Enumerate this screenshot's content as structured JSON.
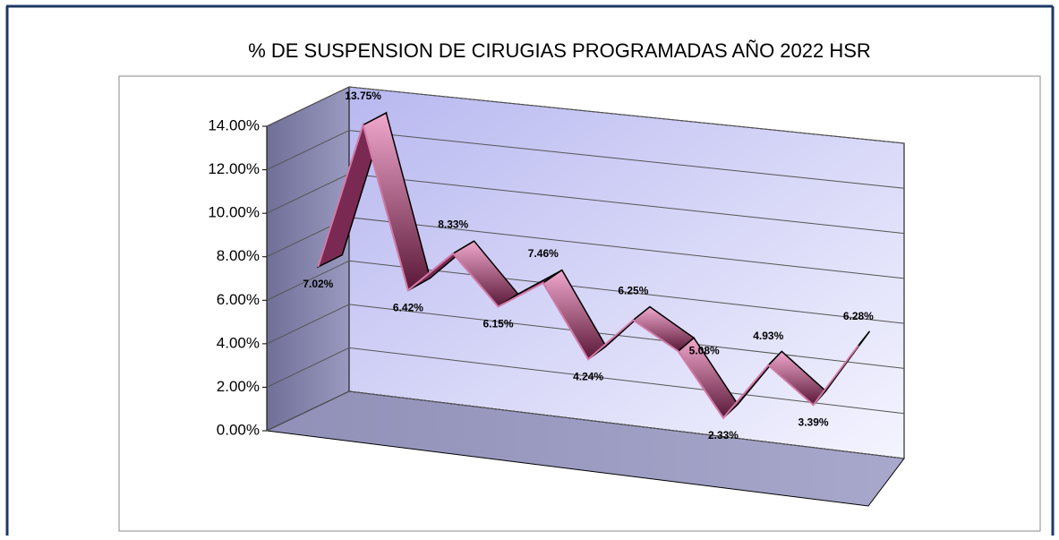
{
  "chart_data": {
    "type": "line3d",
    "title": "% DE SUSPENSION DE CIRUGIAS PROGRAMADAS AÑO 2022 HSR",
    "categories": [
      null,
      null,
      null,
      null,
      null,
      null,
      null,
      null,
      null,
      null,
      null,
      null,
      null
    ],
    "values": [
      7.02,
      13.75,
      6.42,
      8.33,
      6.15,
      7.46,
      4.24,
      6.25,
      5.08,
      2.33,
      4.93,
      3.39,
      6.28
    ],
    "value_labels": [
      "7.02%",
      "13.75%",
      "6.42%",
      "8.33%",
      "6.15%",
      "7.46%",
      "4.24%",
      "6.25%",
      "5.08%",
      "2.33%",
      "4.93%",
      "3.39%",
      "6.28%"
    ],
    "color": "#d27aa8",
    "ylim": [
      0,
      14
    ],
    "yticks": [
      {
        "value": 0,
        "label": "0.00%"
      },
      {
        "value": 2,
        "label": "2.00%"
      },
      {
        "value": 4,
        "label": "4.00%"
      },
      {
        "value": 6,
        "label": "6.00%"
      },
      {
        "value": 8,
        "label": "8.00%"
      },
      {
        "value": 10,
        "label": "10.00%"
      },
      {
        "value": 12,
        "label": "12.00%"
      },
      {
        "value": 14,
        "label": "14.00%"
      }
    ],
    "grid": true
  }
}
